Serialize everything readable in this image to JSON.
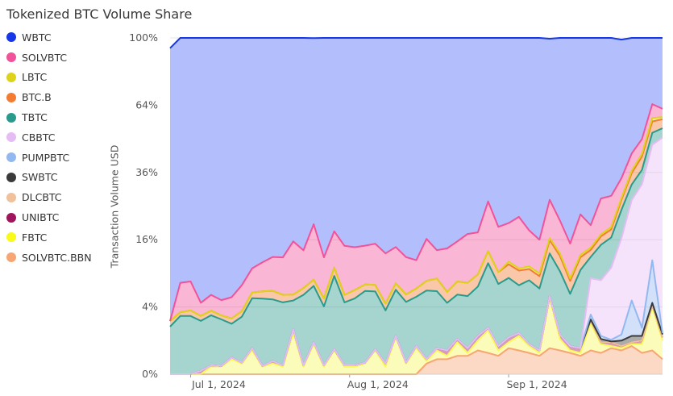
{
  "chart_data": {
    "type": "area",
    "title": "Tokenized BTC Volume Share",
    "ylabel": "Transaction Volume USD",
    "xlabel": "",
    "stacked": true,
    "y_scale": "sqrt",
    "ylim": [
      0,
      100
    ],
    "y_ticks": [
      "0%",
      "4%",
      "16%",
      "36%",
      "64%",
      "100%"
    ],
    "x_ticks": [
      "Jul 1, 2024",
      "Aug 1, 2024",
      "Sep 1, 2024"
    ],
    "legend_position": "left",
    "x": [
      "2024-06-27",
      "2024-06-29",
      "2024-07-01",
      "2024-07-03",
      "2024-07-05",
      "2024-07-07",
      "2024-07-09",
      "2024-07-11",
      "2024-07-13",
      "2024-07-15",
      "2024-07-17",
      "2024-07-19",
      "2024-07-21",
      "2024-07-23",
      "2024-07-25",
      "2024-07-27",
      "2024-07-29",
      "2024-07-31",
      "2024-08-02",
      "2024-08-04",
      "2024-08-06",
      "2024-08-08",
      "2024-08-10",
      "2024-08-12",
      "2024-08-14",
      "2024-08-16",
      "2024-08-18",
      "2024-08-20",
      "2024-08-22",
      "2024-08-24",
      "2024-08-26",
      "2024-08-28",
      "2024-08-30",
      "2024-09-01",
      "2024-09-03",
      "2024-09-05",
      "2024-09-07",
      "2024-09-09",
      "2024-09-11",
      "2024-09-13",
      "2024-09-15",
      "2024-09-17",
      "2024-09-19",
      "2024-09-21",
      "2024-09-23",
      "2024-09-25",
      "2024-09-27",
      "2024-09-29",
      "2024-10-01"
    ],
    "series": [
      {
        "name": "SOLVBTC.BBN",
        "color": "#f7a572",
        "values": [
          0,
          0,
          0,
          0,
          0,
          0,
          0,
          0,
          0,
          0,
          0,
          0,
          0,
          0,
          0,
          0,
          0,
          0,
          0,
          0,
          0,
          0,
          0,
          0,
          0,
          0.1,
          0.2,
          0.2,
          0.3,
          0.3,
          0.5,
          0.4,
          0.3,
          0.6,
          0.5,
          0.4,
          0.3,
          0.6,
          0.5,
          0.4,
          0.3,
          0.5,
          0.4,
          0.6,
          0.5,
          0.7,
          0.4,
          0.5,
          0.2
        ]
      },
      {
        "name": "FBTC",
        "color": "#f9f95a",
        "values": [
          0,
          0,
          0,
          0,
          0.05,
          0.05,
          0.2,
          0.1,
          0.5,
          0.05,
          0.1,
          0.05,
          1.5,
          0.05,
          0.8,
          0.05,
          0.5,
          0.05,
          0.05,
          0.1,
          0.5,
          0.05,
          1.2,
          0.1,
          0.6,
          0.05,
          0.3,
          0.1,
          0.6,
          0.1,
          0.5,
          1.3,
          0.2,
          0.3,
          0.8,
          0.3,
          0.1,
          4.5,
          0.6,
          0.1,
          0.1,
          1.8,
          0.4,
          0.1,
          0.1,
          0.1,
          0.4,
          3.5,
          0.8
        ]
      },
      {
        "name": "UNIBTC",
        "color": "#a0145e",
        "values": [
          0,
          0,
          0,
          0.01,
          0.02,
          0.01,
          0.05,
          0.02,
          0.1,
          0.01,
          0.05,
          0.02,
          0.3,
          0.02,
          0.1,
          0.02,
          0.05,
          0.02,
          0.02,
          0.02,
          0.05,
          0.05,
          0.1,
          0.02,
          0.1,
          0.05,
          0.1,
          0.2,
          0.2,
          0.2,
          0.3,
          0.2,
          0.2,
          0.3,
          0.2,
          0.1,
          0.1,
          0.3,
          0.3,
          0.2,
          0.2,
          0.3,
          0.1,
          0.2,
          0.1,
          0.1,
          0.2,
          0.3,
          0.2
        ]
      },
      {
        "name": "DLCBTC",
        "color": "#f0c19a",
        "values": [
          0,
          0,
          0,
          0,
          0,
          0,
          0,
          0,
          0,
          0,
          0,
          0,
          0,
          0,
          0,
          0,
          0,
          0,
          0,
          0,
          0,
          0,
          0,
          0,
          0,
          0,
          0,
          0,
          0,
          0,
          0,
          0,
          0,
          0,
          0,
          0,
          0,
          0,
          0,
          0,
          0,
          0,
          0,
          0,
          0,
          0,
          0,
          0,
          0
        ]
      },
      {
        "name": "SWBTC",
        "color": "#3a3a3a",
        "values": [
          0,
          0,
          0,
          0,
          0,
          0,
          0,
          0,
          0,
          0,
          0,
          0,
          0,
          0,
          0,
          0,
          0,
          0,
          0,
          0,
          0,
          0,
          0,
          0,
          0,
          0,
          0,
          0,
          0,
          0,
          0,
          0,
          0,
          0,
          0,
          0,
          0,
          0,
          0,
          0,
          0,
          0.05,
          0.2,
          0.05,
          0.3,
          0.4,
          0.3,
          0.2,
          0.2
        ]
      },
      {
        "name": "PUMPBTC",
        "color": "#93b8f0",
        "values": [
          0,
          0,
          0,
          0,
          0,
          0,
          0,
          0,
          0,
          0,
          0,
          0,
          0,
          0,
          0,
          0,
          0,
          0,
          0,
          0,
          0,
          0,
          0,
          0,
          0,
          0,
          0,
          0,
          0,
          0,
          0,
          0,
          0,
          0,
          0,
          0,
          0,
          0,
          0,
          0,
          0,
          0.5,
          0.2,
          0.1,
          0.4,
          3.5,
          0.6,
          7.0,
          0.1
        ]
      },
      {
        "name": "CBBTC",
        "color": "#e6bcf5",
        "values": [
          0,
          0,
          0,
          0,
          0,
          0,
          0,
          0,
          0,
          0,
          0,
          0,
          0,
          0,
          0,
          0,
          0,
          0,
          0,
          0,
          0,
          0,
          0,
          0,
          0,
          0,
          0,
          0,
          0,
          0,
          0,
          0,
          0,
          0,
          0,
          0,
          0,
          0,
          0,
          0,
          0,
          5.0,
          6.5,
          9.0,
          15.0,
          22.0,
          30.0,
          35.0,
          48.0
        ]
      },
      {
        "name": "TBTC",
        "color": "#2a9a8c",
        "values": [
          2.0,
          3.0,
          3.0,
          2.5,
          3.0,
          2.6,
          2.0,
          2.8,
          4.5,
          5.0,
          4.8,
          4.5,
          3.0,
          5.5,
          6.0,
          4.0,
          8.0,
          4.5,
          5.0,
          6.0,
          5.5,
          3.5,
          5.0,
          4.5,
          4.6,
          6.0,
          5.5,
          4.0,
          4.5,
          4.8,
          5.5,
          9.0,
          6.5,
          7.0,
          5.5,
          7.0,
          6.0,
          7.5,
          8.0,
          5.0,
          9.0,
          4.0,
          7.0,
          6.5,
          7.5,
          5.0,
          5.0,
          5.0,
          4.0
        ]
      },
      {
        "name": "BTC.B",
        "color": "#f47c32",
        "values": [
          0.5,
          0.4,
          0.6,
          0.5,
          0.5,
          0.4,
          0.5,
          0.6,
          0.8,
          1.0,
          1.2,
          1.0,
          0.8,
          1.0,
          1.0,
          1.0,
          1.5,
          1.0,
          1.2,
          1.0,
          1.0,
          0.8,
          1.0,
          1.0,
          1.2,
          1.5,
          2.0,
          1.5,
          2.0,
          2.0,
          2.0,
          2.5,
          2.0,
          2.5,
          2.5,
          2.0,
          2.0,
          3.0,
          3.0,
          2.0,
          2.5,
          1.5,
          2.0,
          2.0,
          3.0,
          4.0,
          5.0,
          5.0,
          4.0
        ]
      },
      {
        "name": "LBTC",
        "color": "#dcd31a",
        "values": [
          0,
          0,
          0,
          0,
          0,
          0,
          0,
          0,
          0,
          0,
          0,
          0,
          0,
          0,
          0,
          0,
          0,
          0,
          0,
          0,
          0,
          0,
          0,
          0,
          0,
          0,
          0,
          0,
          0,
          0,
          0,
          0,
          0,
          0.5,
          0.4,
          0.5,
          0.5,
          0.5,
          0.5,
          0.4,
          0.5,
          0.5,
          0.5,
          0.6,
          0.6,
          0.8,
          1.0,
          1.5,
          1.0
        ]
      },
      {
        "name": "SOLVBTC",
        "color": "#f2529a",
        "values": [
          0,
          4.0,
          4.0,
          1.5,
          2.0,
          1.8,
          2.5,
          3.5,
          4.0,
          5.0,
          6.0,
          6.5,
          10.0,
          7.0,
          12.0,
          7.0,
          8.0,
          9.0,
          8.0,
          7.5,
          8.0,
          8.5,
          7.0,
          6.5,
          5.0,
          8.5,
          5.5,
          8.0,
          8.0,
          10.0,
          9.0,
          13.0,
          10.0,
          9.0,
          12.0,
          8.0,
          7.0,
          10.5,
          8.0,
          7.0,
          10.0,
          5.5,
          10.0,
          9.0,
          6.5,
          6.5,
          6.0,
          6.5,
          3.8
        ]
      },
      {
        "name": "WBTC",
        "color": "#b3bffc",
        "values": [
          91.5,
          92.6,
          92.4,
          95.5,
          94.45,
          95.15,
          94.75,
          93.0,
          90.1,
          88.95,
          87.85,
          87.95,
          84.4,
          86.43,
          80.0,
          87.93,
          81.95,
          85.43,
          85.73,
          85.38,
          84.95,
          87.1,
          85.68,
          87.88,
          88.5,
          83.85,
          86.7,
          86.0,
          84.4,
          82.6,
          82.2,
          73.6,
          80.8,
          79.8,
          78.1,
          81.7,
          84.0,
          72.6,
          79.1,
          84.9,
          77.4,
          80.7,
          72.8,
          72.5,
          65.0,
          56.9,
          51.1,
          40.5,
          38.6
        ]
      }
    ]
  }
}
